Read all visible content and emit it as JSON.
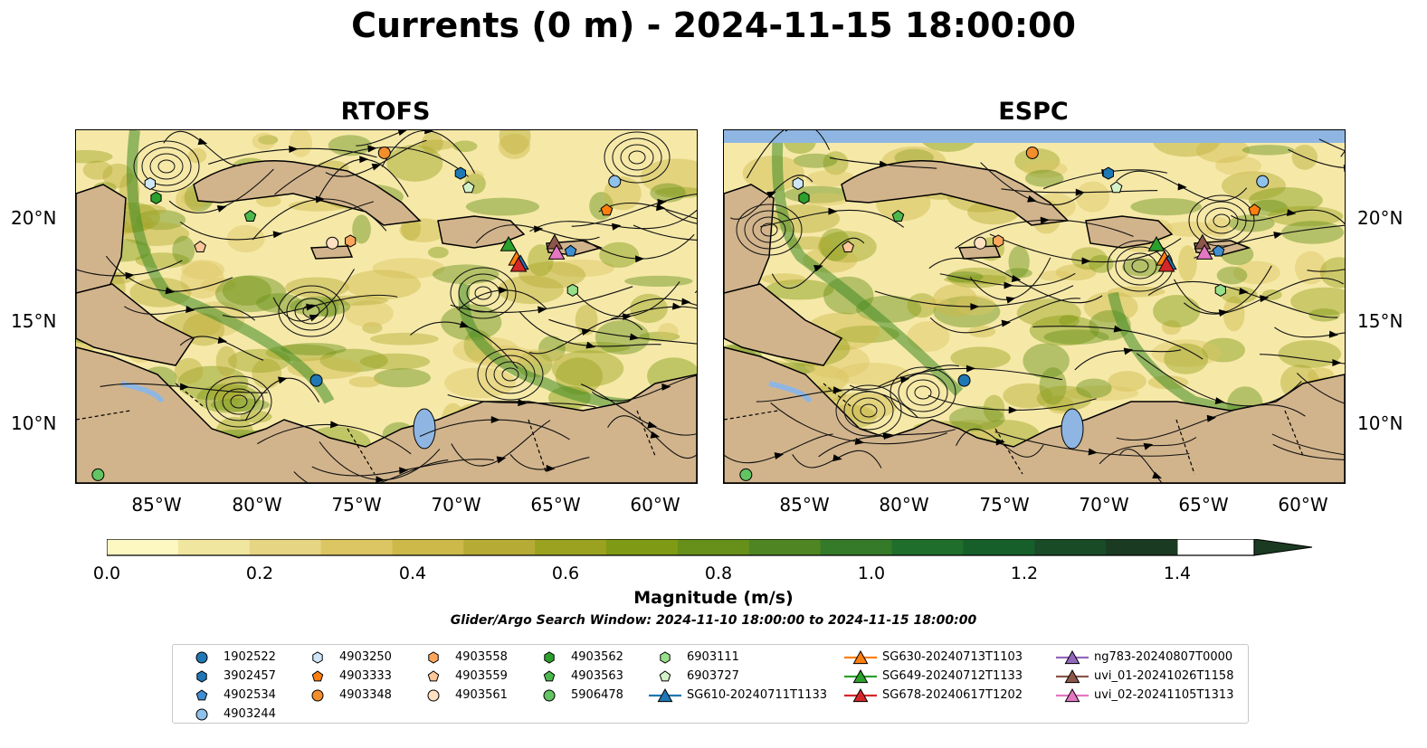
{
  "title": "Currents (0 m) - 2024-11-15 18:00:00",
  "panels": [
    {
      "name": "RTOFS"
    },
    {
      "name": "ESPC"
    }
  ],
  "axes": {
    "lat_ticks": [
      "20°N",
      "15°N",
      "10°N"
    ],
    "lon_ticks": [
      "85°W",
      "80°W",
      "75°W",
      "70°W",
      "65°W",
      "60°W"
    ]
  },
  "colorbar": {
    "label": "Magnitude (m/s)",
    "ticks": [
      "0.0",
      "0.2",
      "0.4",
      "0.6",
      "0.8",
      "1.0",
      "1.2",
      "1.4"
    ],
    "range": [
      0,
      1.5
    ],
    "extend": "max",
    "colors": [
      "#fdf7c2",
      "#f1e6a0",
      "#e6d583",
      "#dcc663",
      "#cdb94a",
      "#b6ab35",
      "#9aa21f",
      "#7f9a14",
      "#67901a",
      "#4f8522",
      "#347a28",
      "#1f6e2c",
      "#165f2a",
      "#1a4b27",
      "#1b3a22"
    ]
  },
  "search_window": "Glider/Argo Search Window: 2024-11-10 18:00:00 to 2024-11-15 18:00:00",
  "map_colors": {
    "ocean_low": "#f6e9a8",
    "land": "#d2b48c",
    "water": "#8fb6e2",
    "border": "#000000"
  },
  "legend": [
    {
      "label": "1902522",
      "marker": "circle",
      "color": "#1f77b4"
    },
    {
      "label": "3902457",
      "marker": "hexagon",
      "color": "#1f77b4"
    },
    {
      "label": "4902534",
      "marker": "pentagon",
      "color": "#3f8fd2"
    },
    {
      "label": "4903244",
      "marker": "circle",
      "color": "#8fc1ea"
    },
    {
      "label": "4903250",
      "marker": "hexagon",
      "color": "#cfe6f8"
    },
    {
      "label": "4903333",
      "marker": "pentagon",
      "color": "#ff7f0e"
    },
    {
      "label": "4903348",
      "marker": "circle",
      "color": "#f28e2b"
    },
    {
      "label": "4903558",
      "marker": "hexagon",
      "color": "#ffa65c"
    },
    {
      "label": "4903559",
      "marker": "pentagon",
      "color": "#ffc79a"
    },
    {
      "label": "4903561",
      "marker": "circle",
      "color": "#ffe0c2"
    },
    {
      "label": "4903562",
      "marker": "hexagon",
      "color": "#2ca02c"
    },
    {
      "label": "4903563",
      "marker": "pentagon",
      "color": "#4cb84c"
    },
    {
      "label": "5906478",
      "marker": "circle",
      "color": "#62c462"
    },
    {
      "label": "6903111",
      "marker": "hexagon",
      "color": "#98df8a"
    },
    {
      "label": "6903727",
      "marker": "pentagon",
      "color": "#d4f2c8"
    },
    {
      "label": "SG610-20240711T1133",
      "marker": "triangle",
      "color": "#1f77b4"
    },
    {
      "label": "SG630-20240713T1103",
      "marker": "triangle",
      "color": "#ff7f0e"
    },
    {
      "label": "SG649-20240712T1133",
      "marker": "triangle",
      "color": "#2ca02c"
    },
    {
      "label": "SG678-20240617T1202",
      "marker": "triangle",
      "color": "#d62728"
    },
    {
      "label": "ng783-20240807T0000",
      "marker": "triangle",
      "color": "#9467bd"
    },
    {
      "label": "uvi_01-20241026T1158",
      "marker": "triangle",
      "color": "#8c564b"
    },
    {
      "label": "uvi_02-20241105T1313",
      "marker": "triangle",
      "color": "#e377c2"
    }
  ],
  "stations": [
    {
      "id": "4903250",
      "lon": -85.3,
      "lat": 21.6
    },
    {
      "id": "4903562",
      "lon": -85.0,
      "lat": 20.9
    },
    {
      "id": "4903563",
      "lon": -80.3,
      "lat": 20.0
    },
    {
      "id": "4903559",
      "lon": -82.8,
      "lat": 18.5
    },
    {
      "id": "4903561",
      "lon": -76.2,
      "lat": 18.7
    },
    {
      "id": "4903558",
      "lon": -75.3,
      "lat": 18.8
    },
    {
      "id": "4903348",
      "lon": -73.6,
      "lat": 23.1
    },
    {
      "id": "3902457",
      "lon": -69.8,
      "lat": 22.1
    },
    {
      "id": "6903727",
      "lon": -69.4,
      "lat": 21.4
    },
    {
      "id": "4903244",
      "lon": -62.1,
      "lat": 21.7
    },
    {
      "id": "4903333",
      "lon": -62.5,
      "lat": 20.3
    },
    {
      "id": "4902534",
      "lon": -64.3,
      "lat": 18.3
    },
    {
      "id": "6903111",
      "lon": -64.2,
      "lat": 16.4
    },
    {
      "id": "1902522",
      "lon": -77.0,
      "lat": 12.0
    },
    {
      "id": "5906478",
      "lon": -87.9,
      "lat": 7.4
    },
    {
      "id": "SG649-20240712T1133",
      "lon": -67.4,
      "lat": 18.6
    },
    {
      "id": "SG630-20240713T1103",
      "lon": -67.0,
      "lat": 17.9
    },
    {
      "id": "SG610-20240711T1133",
      "lon": -66.8,
      "lat": 17.7
    },
    {
      "id": "SG678-20240617T1202",
      "lon": -66.9,
      "lat": 17.6
    },
    {
      "id": "uvi_01-20241026T1158",
      "lon": -65.1,
      "lat": 18.7
    },
    {
      "id": "uvi_02-20241105T1313",
      "lon": -65.0,
      "lat": 18.2
    }
  ]
}
